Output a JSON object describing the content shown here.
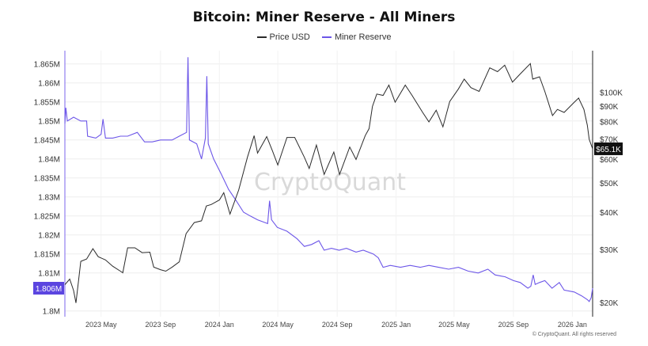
{
  "chart_data": {
    "type": "line",
    "title": "Bitcoin: Miner Reserve - All Miners",
    "legend": {
      "placement": "top-center",
      "entries": [
        "Price USD",
        "Miner Reserve"
      ]
    },
    "watermark": "CryptoQuant",
    "copyright": "© CryptoQuant. All rights reserved",
    "grid": true,
    "x_ticks": [
      "2023 May",
      "2023 Sep",
      "2024 Jan",
      "2024 May",
      "2024 Sep",
      "2025 Jan",
      "2025 May",
      "2025 Sep",
      "2026 Jan"
    ],
    "x_range": [
      "2023-02-15",
      "2026-02-12"
    ],
    "y_left": {
      "label": "",
      "ticks": [
        "1.865M",
        "1.86M",
        "1.855M",
        "1.85M",
        "1.845M",
        "1.84M",
        "1.835M",
        "1.83M",
        "1.825M",
        "1.82M",
        "1.815M",
        "1.81M",
        "1.8M"
      ],
      "range": [
        1.7985,
        1.8685
      ]
    },
    "y_right": {
      "label": "",
      "scale": "log",
      "ticks": [
        "$100K",
        "$90K",
        "$80K",
        "$70K",
        "$60K",
        "$50K",
        "$40K",
        "$30K",
        "$20K"
      ],
      "range": [
        18000,
        138000
      ]
    },
    "current_labels": {
      "miner_reserve": "1.806M",
      "price": "$65.1K"
    },
    "series": [
      {
        "name": "Price USD",
        "color": "#2b2b2b",
        "axis": "right",
        "points": [
          [
            "2023-02-15",
            23000
          ],
          [
            "2023-02-25",
            24000
          ],
          [
            "2023-03-05",
            22000
          ],
          [
            "2023-03-10",
            20000
          ],
          [
            "2023-03-20",
            27500
          ],
          [
            "2023-04-01",
            28000
          ],
          [
            "2023-04-14",
            30300
          ],
          [
            "2023-04-25",
            28500
          ],
          [
            "2023-05-10",
            27800
          ],
          [
            "2023-05-25",
            26500
          ],
          [
            "2023-06-10",
            25500
          ],
          [
            "2023-06-15",
            25200
          ],
          [
            "2023-06-25",
            30500
          ],
          [
            "2023-07-10",
            30500
          ],
          [
            "2023-07-25",
            29400
          ],
          [
            "2023-08-10",
            29500
          ],
          [
            "2023-08-18",
            26300
          ],
          [
            "2023-09-01",
            25800
          ],
          [
            "2023-09-12",
            25500
          ],
          [
            "2023-09-25",
            26300
          ],
          [
            "2023-10-10",
            27400
          ],
          [
            "2023-10-24",
            34000
          ],
          [
            "2023-11-10",
            37000
          ],
          [
            "2023-11-25",
            37500
          ],
          [
            "2023-12-05",
            42000
          ],
          [
            "2023-12-15",
            42500
          ],
          [
            "2024-01-01",
            44000
          ],
          [
            "2024-01-10",
            46500
          ],
          [
            "2024-01-23",
            39500
          ],
          [
            "2024-02-10",
            47500
          ],
          [
            "2024-02-28",
            61000
          ],
          [
            "2024-03-13",
            72000
          ],
          [
            "2024-03-20",
            63000
          ],
          [
            "2024-04-08",
            71500
          ],
          [
            "2024-04-20",
            64000
          ],
          [
            "2024-05-01",
            57500
          ],
          [
            "2024-05-20",
            71000
          ],
          [
            "2024-06-05",
            71000
          ],
          [
            "2024-06-25",
            61000
          ],
          [
            "2024-07-05",
            56000
          ],
          [
            "2024-07-20",
            67000
          ],
          [
            "2024-08-05",
            53500
          ],
          [
            "2024-08-25",
            63500
          ],
          [
            "2024-09-06",
            53500
          ],
          [
            "2024-09-27",
            66000
          ],
          [
            "2024-10-10",
            60000
          ],
          [
            "2024-10-29",
            72000
          ],
          [
            "2024-11-06",
            76000
          ],
          [
            "2024-11-13",
            90000
          ],
          [
            "2024-11-22",
            99000
          ],
          [
            "2024-12-05",
            98000
          ],
          [
            "2024-12-17",
            106000
          ],
          [
            "2024-12-30",
            93000
          ],
          [
            "2025-01-20",
            106000
          ],
          [
            "2025-02-03",
            98000
          ],
          [
            "2025-02-25",
            86000
          ],
          [
            "2025-03-10",
            80000
          ],
          [
            "2025-03-25",
            87500
          ],
          [
            "2025-04-08",
            77000
          ],
          [
            "2025-04-22",
            93500
          ],
          [
            "2025-05-10",
            103000
          ],
          [
            "2025-05-22",
            111000
          ],
          [
            "2025-06-05",
            104000
          ],
          [
            "2025-06-22",
            101000
          ],
          [
            "2025-07-14",
            121000
          ],
          [
            "2025-07-30",
            117500
          ],
          [
            "2025-08-14",
            123500
          ],
          [
            "2025-08-30",
            108500
          ],
          [
            "2025-09-15",
            115500
          ],
          [
            "2025-10-06",
            125000
          ],
          [
            "2025-10-11",
            111000
          ],
          [
            "2025-10-25",
            113000
          ],
          [
            "2025-11-05",
            101000
          ],
          [
            "2025-11-21",
            84000
          ],
          [
            "2025-12-01",
            88000
          ],
          [
            "2025-12-15",
            86000
          ],
          [
            "2026-01-05",
            93000
          ],
          [
            "2026-01-14",
            96000
          ],
          [
            "2026-01-25",
            88000
          ],
          [
            "2026-02-01",
            78000
          ],
          [
            "2026-02-05",
            70000
          ],
          [
            "2026-02-12",
            65100
          ]
        ]
      },
      {
        "name": "Miner Reserve",
        "color": "#6c56e8",
        "axis": "left",
        "points": [
          [
            "2023-02-15",
            1.8493
          ],
          [
            "2023-02-17",
            1.8535
          ],
          [
            "2023-02-20",
            1.85
          ],
          [
            "2023-03-05",
            1.851
          ],
          [
            "2023-03-20",
            1.85
          ],
          [
            "2023-04-01",
            1.85
          ],
          [
            "2023-04-03",
            1.846
          ],
          [
            "2023-04-20",
            1.8455
          ],
          [
            "2023-05-01",
            1.8465
          ],
          [
            "2023-05-05",
            1.8505
          ],
          [
            "2023-05-10",
            1.8455
          ],
          [
            "2023-05-25",
            1.8455
          ],
          [
            "2023-06-10",
            1.846
          ],
          [
            "2023-06-25",
            1.846
          ],
          [
            "2023-07-15",
            1.847
          ],
          [
            "2023-07-30",
            1.8445
          ],
          [
            "2023-08-15",
            1.8445
          ],
          [
            "2023-09-01",
            1.845
          ],
          [
            "2023-09-25",
            1.845
          ],
          [
            "2023-10-10",
            1.846
          ],
          [
            "2023-10-25",
            1.847
          ],
          [
            "2023-10-28",
            1.8668
          ],
          [
            "2023-10-31",
            1.845
          ],
          [
            "2023-11-15",
            1.844
          ],
          [
            "2023-11-25",
            1.84
          ],
          [
            "2023-12-03",
            1.8455
          ],
          [
            "2023-12-06",
            1.8618
          ],
          [
            "2023-12-09",
            1.844
          ],
          [
            "2023-12-20",
            1.84
          ],
          [
            "2024-01-05",
            1.836
          ],
          [
            "2024-01-20",
            1.832
          ],
          [
            "2024-02-05",
            1.829
          ],
          [
            "2024-02-20",
            1.826
          ],
          [
            "2024-03-05",
            1.825
          ],
          [
            "2024-03-20",
            1.824
          ],
          [
            "2024-04-10",
            1.823
          ],
          [
            "2024-04-14",
            1.829
          ],
          [
            "2024-04-18",
            1.824
          ],
          [
            "2024-04-30",
            1.822
          ],
          [
            "2024-05-20",
            1.821
          ],
          [
            "2024-06-10",
            1.819
          ],
          [
            "2024-06-25",
            1.817
          ],
          [
            "2024-07-10",
            1.8175
          ],
          [
            "2024-07-25",
            1.8185
          ],
          [
            "2024-08-05",
            1.816
          ],
          [
            "2024-08-20",
            1.8165
          ],
          [
            "2024-09-05",
            1.816
          ],
          [
            "2024-09-20",
            1.8165
          ],
          [
            "2024-10-10",
            1.8155
          ],
          [
            "2024-10-25",
            1.816
          ],
          [
            "2024-11-15",
            1.815
          ],
          [
            "2024-11-25",
            1.814
          ],
          [
            "2024-12-05",
            1.8115
          ],
          [
            "2024-12-20",
            1.812
          ],
          [
            "2025-01-10",
            1.8115
          ],
          [
            "2025-01-30",
            1.812
          ],
          [
            "2025-02-20",
            1.8115
          ],
          [
            "2025-03-10",
            1.812
          ],
          [
            "2025-03-30",
            1.8115
          ],
          [
            "2025-04-20",
            1.811
          ],
          [
            "2025-05-10",
            1.8115
          ],
          [
            "2025-05-30",
            1.8105
          ],
          [
            "2025-06-20",
            1.81
          ],
          [
            "2025-07-10",
            1.811
          ],
          [
            "2025-07-25",
            1.8095
          ],
          [
            "2025-08-15",
            1.809
          ],
          [
            "2025-09-01",
            1.808
          ],
          [
            "2025-09-15",
            1.8075
          ],
          [
            "2025-10-01",
            1.806
          ],
          [
            "2025-10-07",
            1.8065
          ],
          [
            "2025-10-12",
            1.8095
          ],
          [
            "2025-10-16",
            1.807
          ],
          [
            "2025-10-25",
            1.8075
          ],
          [
            "2025-11-05",
            1.808
          ],
          [
            "2025-11-20",
            1.806
          ],
          [
            "2025-12-05",
            1.8075
          ],
          [
            "2025-12-15",
            1.8055
          ],
          [
            "2026-01-05",
            1.805
          ],
          [
            "2026-01-20",
            1.804
          ],
          [
            "2026-02-01",
            1.803
          ],
          [
            "2026-02-05",
            1.8025
          ],
          [
            "2026-02-09",
            1.8035
          ],
          [
            "2026-02-12",
            1.806
          ]
        ]
      }
    ]
  }
}
